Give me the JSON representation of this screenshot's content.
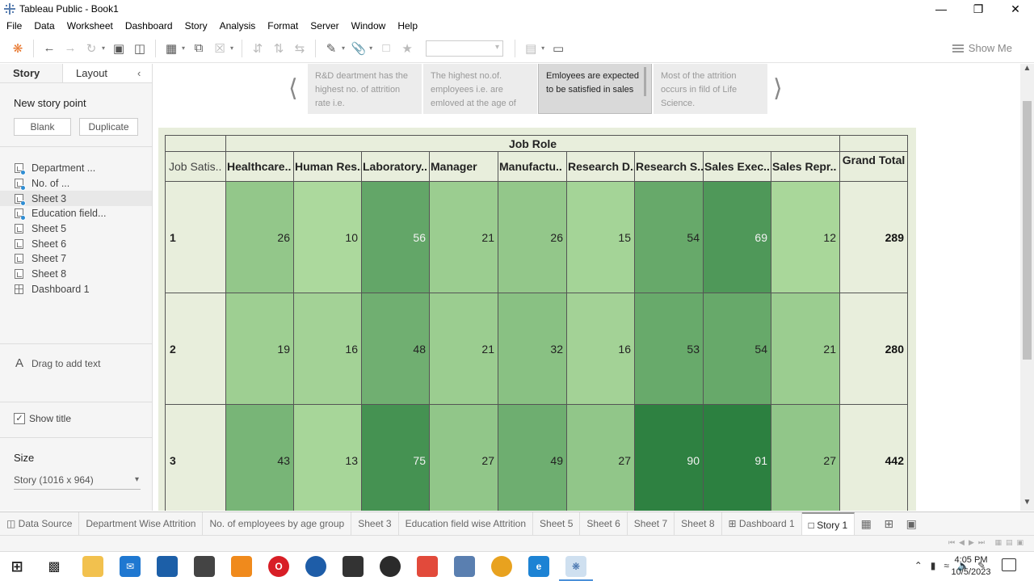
{
  "window": {
    "title": "Tableau Public - Book1",
    "controls": [
      "minimize-icon",
      "restore-icon",
      "close-icon"
    ]
  },
  "menu": [
    "File",
    "Data",
    "Worksheet",
    "Dashboard",
    "Story",
    "Analysis",
    "Format",
    "Server",
    "Window",
    "Help"
  ],
  "toolbar": {
    "show_me": "Show Me"
  },
  "left_pane": {
    "tabs": [
      "Story",
      "Layout"
    ],
    "new_story_point": "New story point",
    "blank_button": "Blank",
    "duplicate_button": "Duplicate",
    "sheets": [
      {
        "label": "Department ...",
        "used": true,
        "type": "sheet"
      },
      {
        "label": "No. of ...",
        "used": true,
        "type": "sheet"
      },
      {
        "label": "Sheet 3",
        "used": true,
        "type": "sheet"
      },
      {
        "label": "Education field...",
        "used": true,
        "type": "sheet"
      },
      {
        "label": "Sheet 5",
        "used": false,
        "type": "sheet"
      },
      {
        "label": "Sheet 6",
        "used": false,
        "type": "sheet"
      },
      {
        "label": "Sheet 7",
        "used": false,
        "type": "sheet"
      },
      {
        "label": "Sheet 8",
        "used": false,
        "type": "sheet"
      },
      {
        "label": "Dashboard 1",
        "used": false,
        "type": "dashboard"
      }
    ],
    "drag_text": "Drag to add text",
    "show_title": "Show title",
    "size_label": "Size",
    "size_value": "Story (1016 x 964)"
  },
  "story_points": [
    {
      "text": "R&D deartment has the highest no. of attrition rate i.e.",
      "active": false
    },
    {
      "text": "The highest no.of. employees i.e. are emloved at the age of",
      "active": false
    },
    {
      "text": "Emloyees are expected to be satisfied in sales",
      "active": true
    },
    {
      "text": "Most of the attrition occurs in fild of Life Science.",
      "active": false
    }
  ],
  "crosstab": {
    "column_group": "Job Role",
    "row_header": "Job Satis..",
    "columns": [
      "Healthcare..",
      "Human Res..",
      "Laboratory..",
      "Manager",
      "Manufactu..",
      "Research D..",
      "Research S..",
      "Sales Exec..",
      "Sales Repr.."
    ],
    "grand_total_label": "Grand Total",
    "rows": [
      {
        "label": "1",
        "values": [
          26,
          10,
          56,
          21,
          26,
          15,
          54,
          69,
          12
        ],
        "total": 289
      },
      {
        "label": "2",
        "values": [
          19,
          16,
          48,
          21,
          32,
          16,
          53,
          54,
          21
        ],
        "total": 280
      },
      {
        "label": "3",
        "values": [
          43,
          13,
          75,
          27,
          49,
          27,
          90,
          91,
          27
        ],
        "total": 442
      }
    ]
  },
  "sheet_tabs": [
    {
      "label": "Data Source",
      "icon": "database-icon"
    },
    {
      "label": "Department Wise Attrition"
    },
    {
      "label": "No. of employees by age group"
    },
    {
      "label": "Sheet 3"
    },
    {
      "label": "Education field wise Attrition"
    },
    {
      "label": "Sheet 5"
    },
    {
      "label": "Sheet 6"
    },
    {
      "label": "Sheet 7"
    },
    {
      "label": "Sheet 8"
    },
    {
      "label": "Dashboard 1",
      "icon": "dashboard-icon"
    },
    {
      "label": "Story 1",
      "icon": "story-icon",
      "active": true
    }
  ],
  "taskbar": {
    "time": "4:05 PM",
    "date": "10/5/2023"
  }
}
